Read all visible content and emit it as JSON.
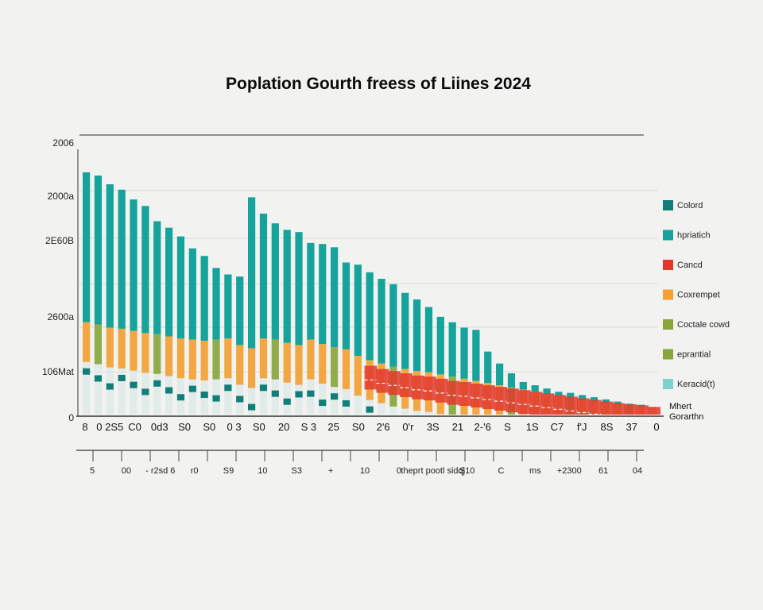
{
  "colors": {
    "background": "#f2f3f1",
    "teal": "#16a39c",
    "teal_dark": "#127e7a",
    "red": "#e0392c",
    "orange": "#f5a031",
    "olive": "#88a53a",
    "aqua": "#7cd2cf",
    "pale": "#dfeae8"
  },
  "chart_data": {
    "type": "bar",
    "title": "Poplation Gourth freess of Liines 2024",
    "xlabel": "",
    "ylabel": "",
    "y_tick_labels": [
      "0",
      "106Mat",
      "2600a",
      "2E60B",
      "2000a",
      "2006"
    ],
    "x_tick_labels": [
      "8",
      "0 2S5",
      "C0",
      "0d3",
      "S0",
      "S0",
      "0 3",
      "S0",
      "20",
      "S 3",
      "25",
      "S0",
      "2'6",
      "0'r",
      "3S",
      "21",
      "2-'6",
      "S",
      "1S",
      "C7",
      "f'J",
      "8S",
      "37",
      "0"
    ],
    "x2_tick_labels": [
      "5",
      "00",
      "- r2sd 6",
      "r0",
      "S9",
      "10",
      "S3",
      "+",
      "10",
      "0",
      "theprt pootl sidqj",
      "S10",
      "C",
      "ms",
      "+2300",
      "61",
      "04"
    ],
    "corner_note": [
      "Mhert",
      "Gorarthn"
    ],
    "legend": [
      {
        "label": "Colord",
        "color": "#127e7a"
      },
      {
        "label": "hpriatich",
        "color": "#16a39c"
      },
      {
        "label": "Cancd",
        "color": "#e0392c"
      },
      {
        "label": "Coxrempet",
        "color": "#f5a031"
      },
      {
        "label": "Coctale cowd",
        "color": "#88a53a"
      },
      {
        "label": "eprantial",
        "color": "#88a53a"
      },
      {
        "label": "Keracid(t)",
        "color": "#7cd2cf"
      }
    ],
    "series": [
      {
        "color_key": "teal",
        "values": [
          2230,
          2200,
          2120,
          2070,
          1980,
          1920,
          1780,
          1720,
          1640,
          1530,
          1460,
          1350,
          1290,
          1270,
          2000,
          1850,
          1760,
          1700,
          1680,
          1580,
          1570,
          1540,
          1400,
          1380,
          1310,
          1250,
          1200,
          1120,
          1060,
          990,
          900,
          850,
          800,
          780,
          580,
          470,
          380,
          300,
          270,
          240,
          210,
          200,
          180,
          160,
          140,
          120,
          100,
          90,
          70
        ]
      },
      {
        "color_key": "orange",
        "values": [
          850,
          830,
          800,
          790,
          770,
          750,
          740,
          720,
          700,
          690,
          680,
          690,
          700,
          640,
          610,
          700,
          690,
          660,
          640,
          690,
          650,
          620,
          600,
          540,
          500,
          470,
          440,
          420,
          400,
          390,
          370,
          350,
          330,
          310,
          290,
          270,
          250,
          230,
          210,
          190,
          170,
          150,
          135,
          120,
          105,
          95,
          85,
          75,
          60
        ]
      },
      {
        "color_key": "red",
        "values": [
          0,
          0,
          0,
          0,
          0,
          0,
          0,
          0,
          0,
          0,
          0,
          0,
          0,
          0,
          0,
          0,
          0,
          0,
          0,
          0,
          0,
          0,
          0,
          0,
          450,
          420,
          400,
          380,
          360,
          350,
          330,
          310,
          300,
          285,
          270,
          255,
          240,
          225,
          210,
          195,
          180,
          165,
          150,
          135,
          120,
          105,
          95,
          85,
          70
        ]
      }
    ],
    "ylim": [
      0,
      2500
    ],
    "grid": true,
    "legend_position": "right"
  }
}
